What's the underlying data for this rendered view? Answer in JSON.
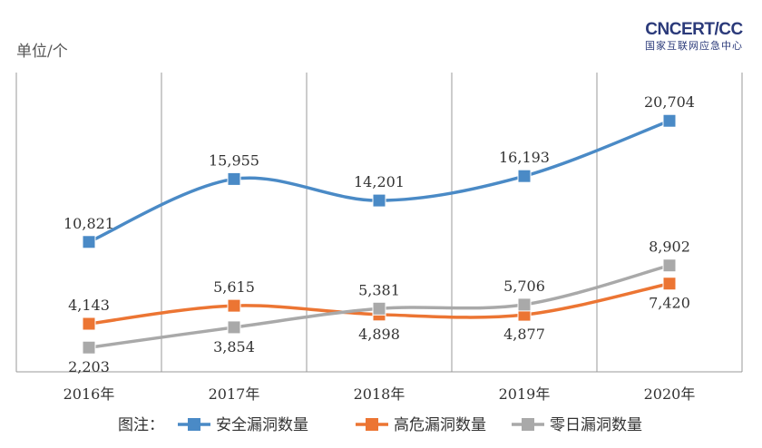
{
  "logo": {
    "text": "CNCERT/CC",
    "subtitle": "国家互联网应急中心"
  },
  "chart_data": {
    "type": "line",
    "ylabel": "单位/个",
    "categories": [
      "2016年",
      "2017年",
      "2018年",
      "2019年",
      "2020年"
    ],
    "ylim": [
      0,
      22000
    ],
    "grid": "vertical",
    "legend_title": "图注：",
    "legend_position": "bottom",
    "series": [
      {
        "name": "安全漏洞数量",
        "color": "#4a8ac6",
        "values": [
          10821,
          15955,
          14201,
          16193,
          20704
        ],
        "labels": [
          "10,821",
          "15,955",
          "14,201",
          "16,193",
          "20,704"
        ],
        "label_pos": [
          "above",
          "above",
          "above",
          "above",
          "above"
        ]
      },
      {
        "name": "高危漏洞数量",
        "color": "#ec7533",
        "values": [
          4143,
          5615,
          4898,
          4877,
          7420
        ],
        "labels": [
          "4,143",
          "5,615",
          "4,898",
          "4,877",
          "7,420"
        ],
        "label_pos": [
          "above",
          "above",
          "below",
          "below",
          "below"
        ]
      },
      {
        "name": "零日漏洞数量",
        "color": "#a9a9a9",
        "values": [
          2203,
          3854,
          5381,
          5706,
          8902
        ],
        "labels": [
          "2,203",
          "3,854",
          "5,381",
          "5,706",
          "8,902"
        ],
        "label_pos": [
          "below",
          "below",
          "above",
          "above",
          "above"
        ]
      }
    ]
  }
}
